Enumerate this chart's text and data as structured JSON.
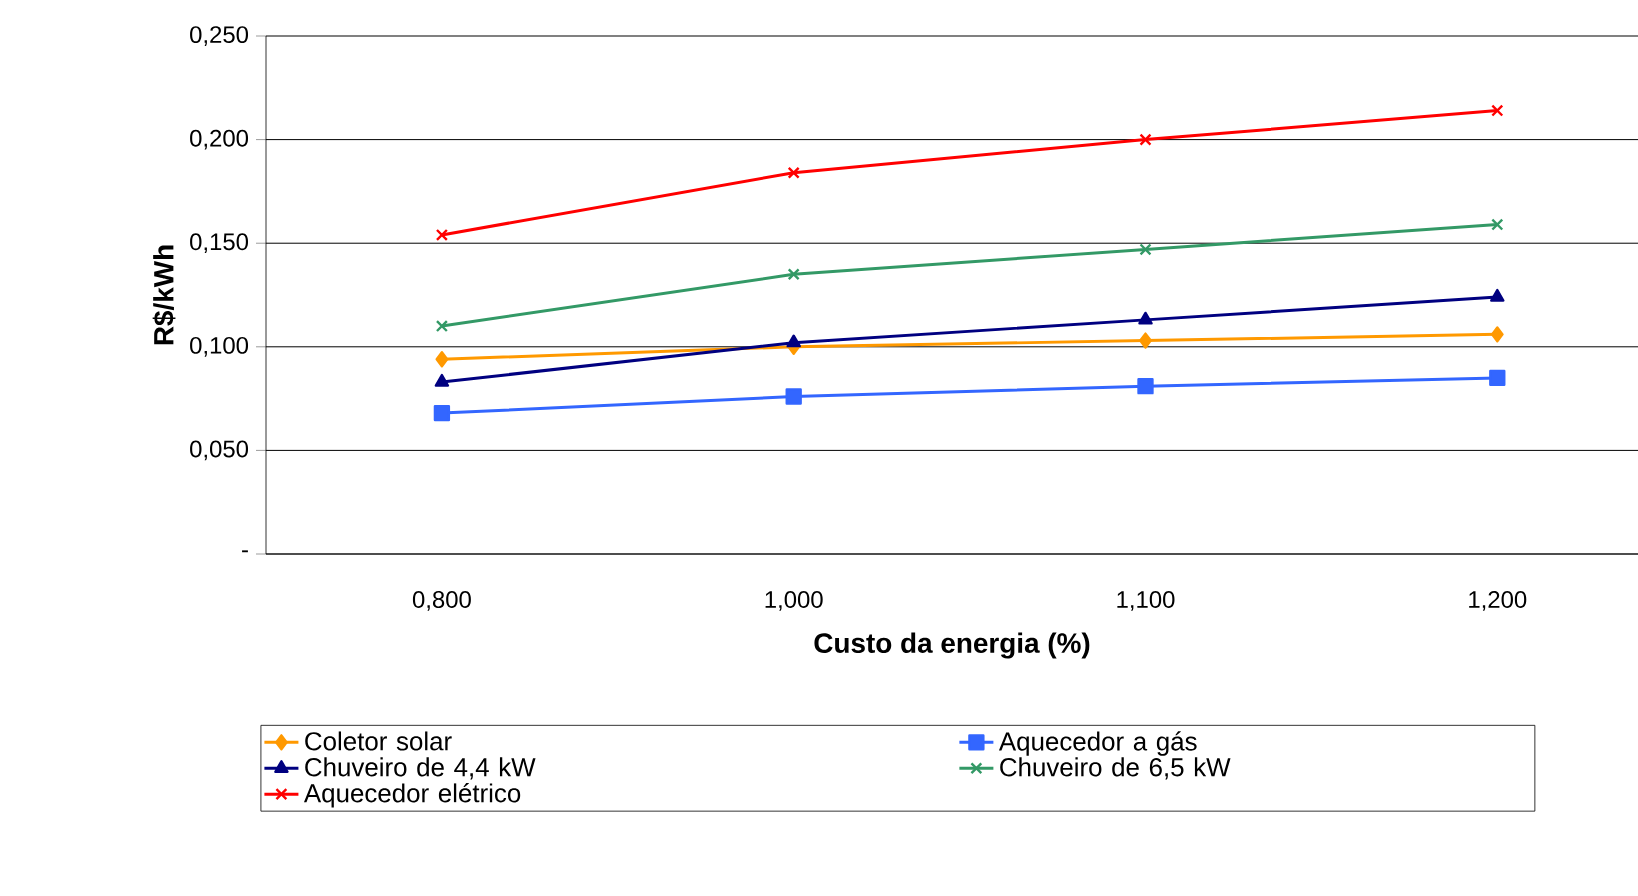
{
  "chart_data": {
    "type": "line",
    "xlabel": "Custo da energia (%)",
    "ylabel": "R$/kWh",
    "categories": [
      "0,800",
      "1,000",
      "1,100",
      "1,200"
    ],
    "series": [
      {
        "name": "Coletor solar",
        "color": "#ff9900",
        "marker": "diamond",
        "values": [
          0.094,
          0.1,
          0.103,
          0.106
        ]
      },
      {
        "name": "Aquecedor a gás",
        "color": "#3366ff",
        "marker": "square",
        "values": [
          0.068,
          0.076,
          0.081,
          0.085
        ]
      },
      {
        "name": "Chuveiro de 4,4 kW",
        "color": "#000080",
        "marker": "triangle",
        "values": [
          0.083,
          0.102,
          0.113,
          0.124
        ]
      },
      {
        "name": "Chuveiro de 6,5 kW",
        "color": "#339966",
        "marker": "cross",
        "values": [
          0.11,
          0.135,
          0.147,
          0.159
        ]
      },
      {
        "name": "Aquecedor elétrico",
        "color": "#ff0000",
        "marker": "cross",
        "values": [
          0.154,
          0.184,
          0.2,
          0.214
        ]
      }
    ],
    "ylim": [
      0,
      0.25
    ],
    "yticks": [
      {
        "value": 0,
        "label": "-"
      },
      {
        "value": 0.05,
        "label": "0,050"
      },
      {
        "value": 0.1,
        "label": "0,100"
      },
      {
        "value": 0.15,
        "label": "0,150"
      },
      {
        "value": 0.2,
        "label": "0,200"
      },
      {
        "value": 0.25,
        "label": "0,250"
      }
    ],
    "grid": "y",
    "legend": "bottom"
  }
}
